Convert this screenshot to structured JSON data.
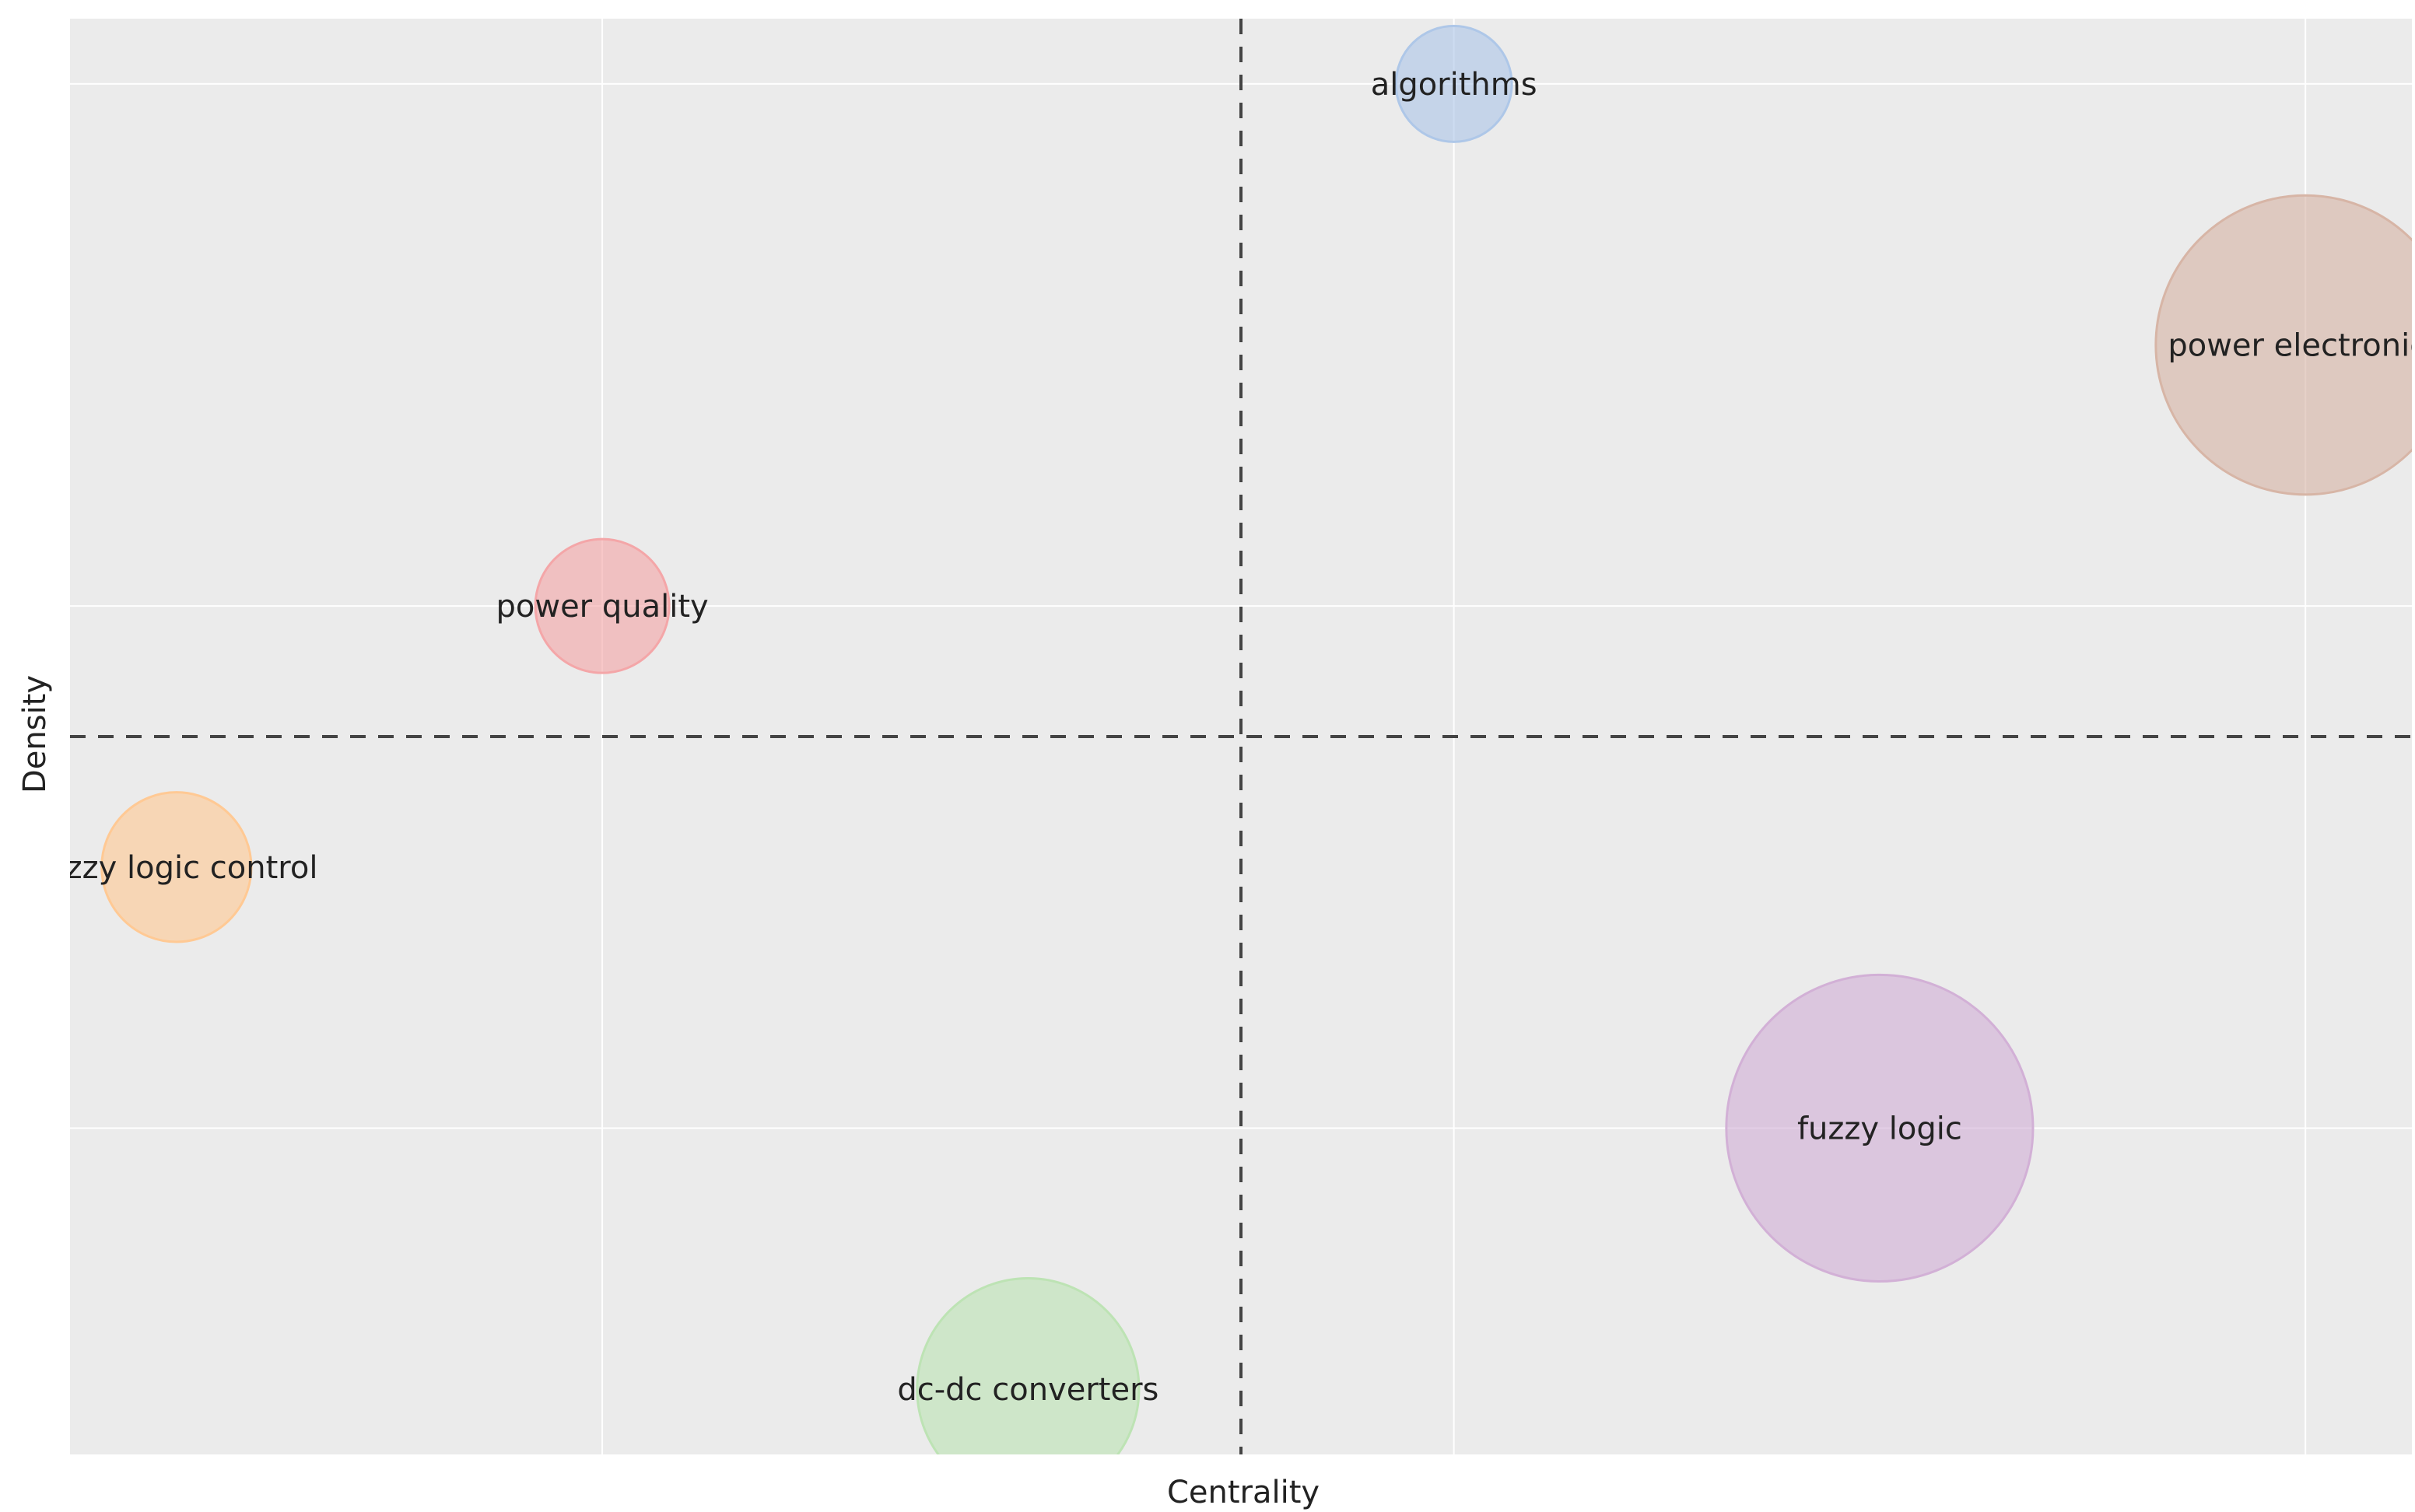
{
  "chart_data": {
    "type": "scatter",
    "title": "",
    "xlabel": "Centrality",
    "ylabel": "Density",
    "xlim": [
      0,
      11
    ],
    "ylim": [
      0,
      11
    ],
    "x_center_line": 5.5,
    "y_center_line": 5.5,
    "grid": true,
    "tick_labels_shown": false,
    "x_grid_values": [
      2.5,
      6.5,
      10.5
    ],
    "y_grid_values": [
      2.5,
      6.5,
      10.5
    ],
    "background_color": "#ebebeb",
    "grid_color": "#ffffff",
    "center_line_color": "#444444",
    "points": [
      {
        "label": "algorithms",
        "x": 6.5,
        "y": 10.5,
        "size": 3,
        "color": "#aec7e8"
      },
      {
        "label": "power electronics",
        "x": 10.5,
        "y": 8.5,
        "size": 20,
        "color": "#d7b5a6"
      },
      {
        "label": "power quality",
        "x": 2.5,
        "y": 6.5,
        "size": 4,
        "color": "#f4a6a8"
      },
      {
        "label": "fuzzy logic control",
        "x": 0.5,
        "y": 4.5,
        "size": 5,
        "color": "#ffc994"
      },
      {
        "label": "fuzzy logic",
        "x": 8.5,
        "y": 2.5,
        "size": 21,
        "color": "#d2b0d6"
      },
      {
        "label": "dc-dc converters",
        "x": 4.5,
        "y": 0.5,
        "size": 11,
        "color": "#bde3b4"
      }
    ]
  }
}
